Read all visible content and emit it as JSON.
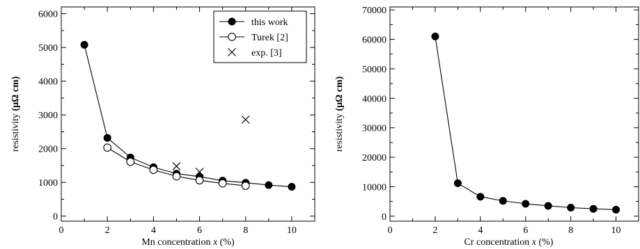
{
  "chart_data": [
    {
      "type": "scatter",
      "title": "",
      "xlabel": {
        "text": "Mn concentration",
        "var": "x",
        "unit": "(%)"
      },
      "ylabel": {
        "text": "resistivity",
        "unit": "(μΩ cm)"
      },
      "xlim": [
        0,
        11
      ],
      "ylim": [
        -150,
        6200
      ],
      "xticks": [
        0,
        2,
        4,
        6,
        8,
        10
      ],
      "yticks": [
        0,
        1000,
        2000,
        3000,
        4000,
        5000,
        6000
      ],
      "grid": false,
      "legend_position": "top-right",
      "series": [
        {
          "name": "this work",
          "marker": "filled-circle",
          "connected": true,
          "x": [
            1,
            2,
            3,
            4,
            5,
            6,
            7,
            8,
            9,
            10
          ],
          "y": [
            5080,
            2320,
            1740,
            1450,
            1260,
            1170,
            1050,
            990,
            920,
            870
          ]
        },
        {
          "name": "Turek [2]",
          "marker": "open-circle",
          "connected": true,
          "x": [
            2,
            3,
            4,
            5,
            6,
            7,
            8
          ],
          "y": [
            2030,
            1610,
            1370,
            1180,
            1060,
            970,
            900
          ]
        },
        {
          "name": "exp. [3]",
          "marker": "cross",
          "connected": false,
          "x": [
            5,
            6,
            8
          ],
          "y": [
            1480,
            1310,
            2860
          ]
        }
      ]
    },
    {
      "type": "line",
      "title": "",
      "xlabel": {
        "text": "Cr concentration",
        "var": "x",
        "unit": "(%)"
      },
      "ylabel": {
        "text": "resistivity",
        "unit": "(μΩ cm)"
      },
      "xlim": [
        0,
        11
      ],
      "ylim": [
        -1700,
        71000
      ],
      "xticks": [
        0,
        2,
        4,
        6,
        8,
        10
      ],
      "yticks": [
        0,
        10000,
        20000,
        30000,
        40000,
        50000,
        60000,
        70000
      ],
      "grid": false,
      "legend_position": "none",
      "series": [
        {
          "marker": "filled-circle",
          "connected": true,
          "x": [
            2,
            3,
            4,
            5,
            6,
            7,
            8,
            9,
            10
          ],
          "y": [
            61000,
            11200,
            6600,
            5200,
            4200,
            3500,
            2900,
            2500,
            2200
          ]
        }
      ]
    }
  ]
}
